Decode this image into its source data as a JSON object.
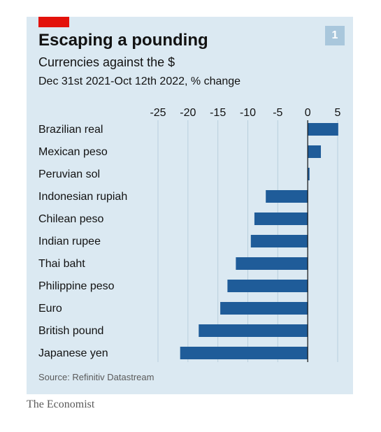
{
  "title": "Escaping a pounding",
  "subtitle": "Currencies against the $",
  "period": "Dec 31st 2021-Oct 12th 2022, % change",
  "badge": "1",
  "source": "Source: Refinitiv Datastream",
  "brand": "The Economist",
  "colors": {
    "bar": "#1f5c99",
    "background": "#dbe9f2",
    "accent": "#e3120b",
    "grid": "#b9cfdd"
  },
  "chart_data": {
    "type": "bar",
    "orientation": "horizontal",
    "categories": [
      "Brazilian real",
      "Mexican peso",
      "Peruvian sol",
      "Indonesian rupiah",
      "Chilean peso",
      "Indian rupee",
      "Thai baht",
      "Philippine peso",
      "Euro",
      "British pound",
      "Japanese yen"
    ],
    "values": [
      5.1,
      2.2,
      0.3,
      -7.0,
      -8.9,
      -9.5,
      -12.0,
      -13.4,
      -14.6,
      -18.2,
      -21.3
    ],
    "xticks": [
      -25,
      -20,
      -15,
      -10,
      -5,
      0,
      5
    ],
    "xlim": [
      -25,
      5
    ],
    "grid": true,
    "title": "Escaping a pounding",
    "subtitle": "Currencies against the $"
  }
}
